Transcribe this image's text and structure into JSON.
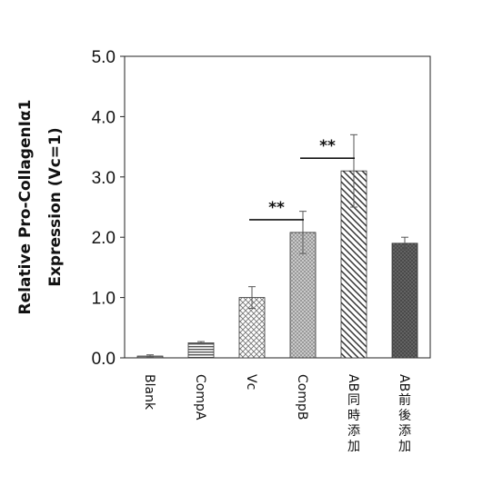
{
  "chart_data": {
    "type": "bar",
    "ylabel_line1": "Relative Pro-CollagenIα1",
    "ylabel_line2": "Expression (Vc=1)",
    "ylim": [
      0,
      5
    ],
    "yticks": [
      "0.0",
      "1.0",
      "2.0",
      "3.0",
      "4.0",
      "5.0"
    ],
    "categories": [
      "Blank",
      "CompA",
      "Vc",
      "CompB",
      "AB同時添加",
      "AB前後添加"
    ],
    "values": [
      0.03,
      0.25,
      1.0,
      2.08,
      3.1,
      1.9
    ],
    "errors": [
      0.02,
      0.02,
      0.18,
      0.35,
      0.6,
      0.1
    ],
    "fills": [
      "solid-gray",
      "horizontal-stripes",
      "crosshatch",
      "dense-dots",
      "diagonal-stripes",
      "dark-dots"
    ],
    "significance": [
      {
        "label": "**",
        "from": "Vc",
        "to": "CompB"
      },
      {
        "label": "**",
        "from": "CompB",
        "to": "AB同時添加"
      }
    ],
    "grid": false,
    "legend": "none"
  }
}
